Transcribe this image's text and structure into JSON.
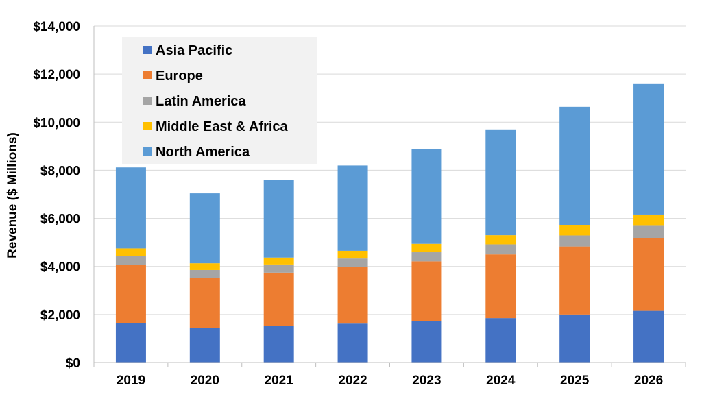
{
  "chart_data": {
    "type": "bar",
    "stacked": true,
    "title": "",
    "xlabel": "",
    "ylabel": "Revenue ($ Millions)",
    "ylim": [
      0,
      14000
    ],
    "ytick_step": 2000,
    "ytick_labels": [
      "$0",
      "$2,000",
      "$4,000",
      "$6,000",
      "$8,000",
      "$10,000",
      "$12,000",
      "$14,000"
    ],
    "categories": [
      "2019",
      "2020",
      "2021",
      "2022",
      "2023",
      "2024",
      "2025",
      "2026"
    ],
    "grid": true,
    "legend_position": "top-left",
    "series": [
      {
        "name": "Asia Pacific",
        "color": "#4472C4",
        "values": [
          1650,
          1430,
          1520,
          1620,
          1730,
          1850,
          2000,
          2150
        ]
      },
      {
        "name": "Europe",
        "color": "#ED7D31",
        "values": [
          2400,
          2100,
          2220,
          2350,
          2480,
          2650,
          2830,
          3020
        ]
      },
      {
        "name": "Latin America",
        "color": "#A5A5A5",
        "values": [
          370,
          320,
          340,
          360,
          380,
          420,
          460,
          520
        ]
      },
      {
        "name": "Middle East & Africa",
        "color": "#FFC000",
        "values": [
          330,
          280,
          290,
          320,
          350,
          380,
          430,
          470
        ]
      },
      {
        "name": "North America",
        "color": "#5B9BD5",
        "values": [
          3370,
          2910,
          3220,
          3550,
          3930,
          4400,
          4920,
          5450
        ]
      }
    ]
  }
}
